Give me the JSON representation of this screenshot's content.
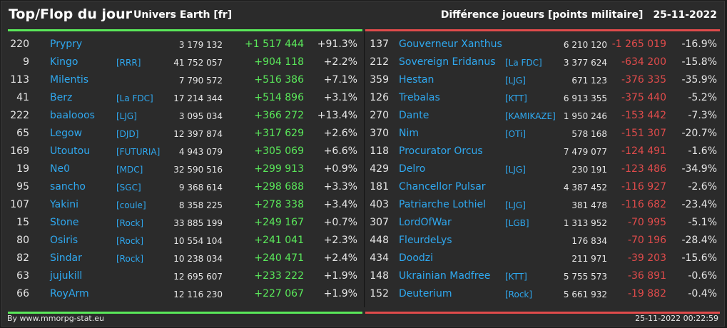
{
  "header": {
    "title": "Top/Flop du jour",
    "subtitle": "Univers Earth [fr]",
    "metric": "Différence joueurs [points militaire]",
    "date": "25-11-2022"
  },
  "top": [
    {
      "rank": "220",
      "name": "Prypry",
      "ally": "",
      "points": "3 179 132",
      "diff": "+1 517 444",
      "pct": "+91.3%"
    },
    {
      "rank": "9",
      "name": "Kingo",
      "ally": "[RRR]",
      "points": "41 752 057",
      "diff": "+904 118",
      "pct": "+2.2%"
    },
    {
      "rank": "113",
      "name": "Milentis",
      "ally": "",
      "points": "7 790 572",
      "diff": "+516 386",
      "pct": "+7.1%"
    },
    {
      "rank": "41",
      "name": "Berz",
      "ally": "[La FDC]",
      "points": "17 214 344",
      "diff": "+514 896",
      "pct": "+3.1%"
    },
    {
      "rank": "222",
      "name": "baalooos",
      "ally": "[LJG]",
      "points": "3 095 034",
      "diff": "+366 272",
      "pct": "+13.4%"
    },
    {
      "rank": "65",
      "name": "Legow",
      "ally": "[DJD]",
      "points": "12 397 874",
      "diff": "+317 629",
      "pct": "+2.6%"
    },
    {
      "rank": "169",
      "name": "Utoutou",
      "ally": "[FUTURIA]",
      "points": "4 943 079",
      "diff": "+305 069",
      "pct": "+6.6%"
    },
    {
      "rank": "19",
      "name": "Ne0",
      "ally": "[MDC]",
      "points": "32 590 516",
      "diff": "+299 913",
      "pct": "+0.9%"
    },
    {
      "rank": "95",
      "name": "sancho",
      "ally": "[SGC]",
      "points": "9 368 614",
      "diff": "+298 688",
      "pct": "+3.3%"
    },
    {
      "rank": "107",
      "name": "Yakini",
      "ally": "[coule]",
      "points": "8 358 225",
      "diff": "+278 338",
      "pct": "+3.4%"
    },
    {
      "rank": "15",
      "name": "Stone",
      "ally": "[Rock]",
      "points": "33 885 199",
      "diff": "+249 167",
      "pct": "+0.7%"
    },
    {
      "rank": "80",
      "name": "Osiris",
      "ally": "[Rock]",
      "points": "10 554 104",
      "diff": "+241 041",
      "pct": "+2.3%"
    },
    {
      "rank": "82",
      "name": "Sindar",
      "ally": "[Rock]",
      "points": "10 238 034",
      "diff": "+240 471",
      "pct": "+2.4%"
    },
    {
      "rank": "63",
      "name": "jujukill",
      "ally": "",
      "points": "12 695 607",
      "diff": "+233 222",
      "pct": "+1.9%"
    },
    {
      "rank": "66",
      "name": "RoyArm",
      "ally": "",
      "points": "12 116 230",
      "diff": "+227 067",
      "pct": "+1.9%"
    }
  ],
  "flop": [
    {
      "rank": "137",
      "name": "Gouverneur Xanthus",
      "ally": "",
      "points": "6 210 120",
      "diff": "-1 265 019",
      "pct": "-16.9%"
    },
    {
      "rank": "212",
      "name": "Sovereign Eridanus",
      "ally": "[La FDC]",
      "points": "3 377 624",
      "diff": "-634 200",
      "pct": "-15.8%"
    },
    {
      "rank": "359",
      "name": "Hestan",
      "ally": "[LJG]",
      "points": "671 123",
      "diff": "-376 335",
      "pct": "-35.9%"
    },
    {
      "rank": "126",
      "name": "Trebalas",
      "ally": "[KTT]",
      "points": "6 913 355",
      "diff": "-375 440",
      "pct": "-5.2%"
    },
    {
      "rank": "270",
      "name": "Dante",
      "ally": "[KAMIKAZE]",
      "points": "1 950 246",
      "diff": "-153 442",
      "pct": "-7.3%"
    },
    {
      "rank": "370",
      "name": "Nim",
      "ally": "[OTi]",
      "points": "578 168",
      "diff": "-151 307",
      "pct": "-20.7%"
    },
    {
      "rank": "118",
      "name": "Procurator Orcus",
      "ally": "",
      "points": "7 479 077",
      "diff": "-124 491",
      "pct": "-1.6%"
    },
    {
      "rank": "429",
      "name": "Delro",
      "ally": "[LJG]",
      "points": "230 191",
      "diff": "-123 486",
      "pct": "-34.9%"
    },
    {
      "rank": "181",
      "name": "Chancellor Pulsar",
      "ally": "",
      "points": "4 387 452",
      "diff": "-116 927",
      "pct": "-2.6%"
    },
    {
      "rank": "403",
      "name": "Patriarche Lothiel",
      "ally": "[LJG]",
      "points": "381 478",
      "diff": "-116 682",
      "pct": "-23.4%"
    },
    {
      "rank": "307",
      "name": "LordOfWar",
      "ally": "[LGB]",
      "points": "1 313 952",
      "diff": "-70 995",
      "pct": "-5.1%"
    },
    {
      "rank": "448",
      "name": "FleurdeLys",
      "ally": "",
      "points": "176 834",
      "diff": "-70 196",
      "pct": "-28.4%"
    },
    {
      "rank": "434",
      "name": "Doodzi",
      "ally": "",
      "points": "211 971",
      "diff": "-39 203",
      "pct": "-15.6%"
    },
    {
      "rank": "148",
      "name": "Ukrainian Madfree",
      "ally": "[KTT]",
      "points": "5 755 573",
      "diff": "-36 891",
      "pct": "-0.6%"
    },
    {
      "rank": "152",
      "name": "Deuterium",
      "ally": "[Rock]",
      "points": "5 661 932",
      "diff": "-19 882",
      "pct": "-0.4%"
    }
  ],
  "footer": {
    "source": "By www.mmorpg-stat.eu",
    "timestamp": "25-11-2022 00:22:59"
  },
  "colors": {
    "gain": "#5ae85a",
    "loss": "#e04b4b",
    "link": "#2fa8ef"
  }
}
